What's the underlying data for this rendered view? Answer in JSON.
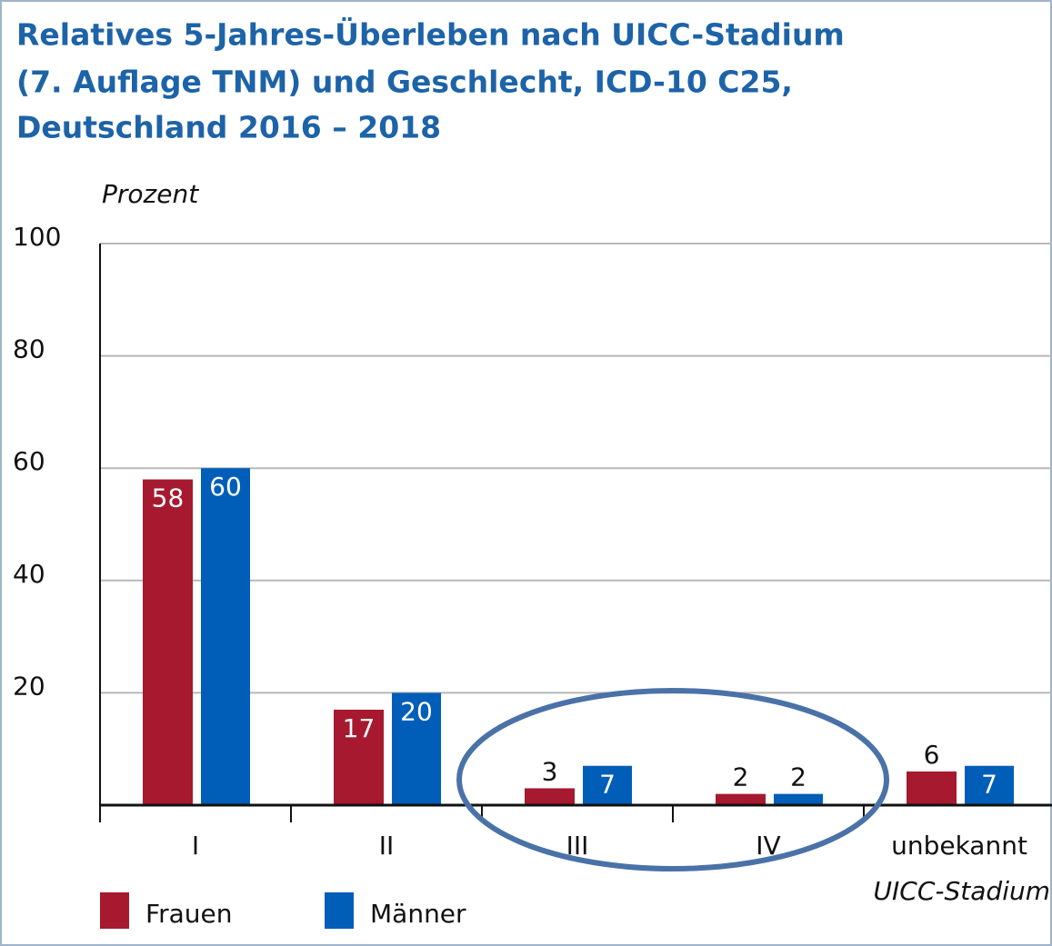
{
  "chart_data": {
    "type": "bar",
    "title_lines": [
      "Relatives 5-Jahres-Überleben nach UICC-Stadium",
      "(7. Auflage TNM) und Geschlecht, ICD-10 C25,",
      "Deutschland 2016 – 2018"
    ],
    "y_label": "Prozent",
    "x_label": "UICC-Stadium",
    "categories": [
      "I",
      "II",
      "III",
      "IV",
      "unbekannt"
    ],
    "series": [
      {
        "name": "Frauen",
        "color": "#a6192e",
        "values": [
          58,
          17,
          3,
          2,
          6
        ]
      },
      {
        "name": "Männer",
        "color": "#005eb8",
        "values": [
          60,
          20,
          7,
          2,
          7
        ]
      }
    ],
    "ylim": [
      0,
      100
    ],
    "yticks": [
      20,
      40,
      60,
      80,
      100
    ],
    "grid": true
  }
}
